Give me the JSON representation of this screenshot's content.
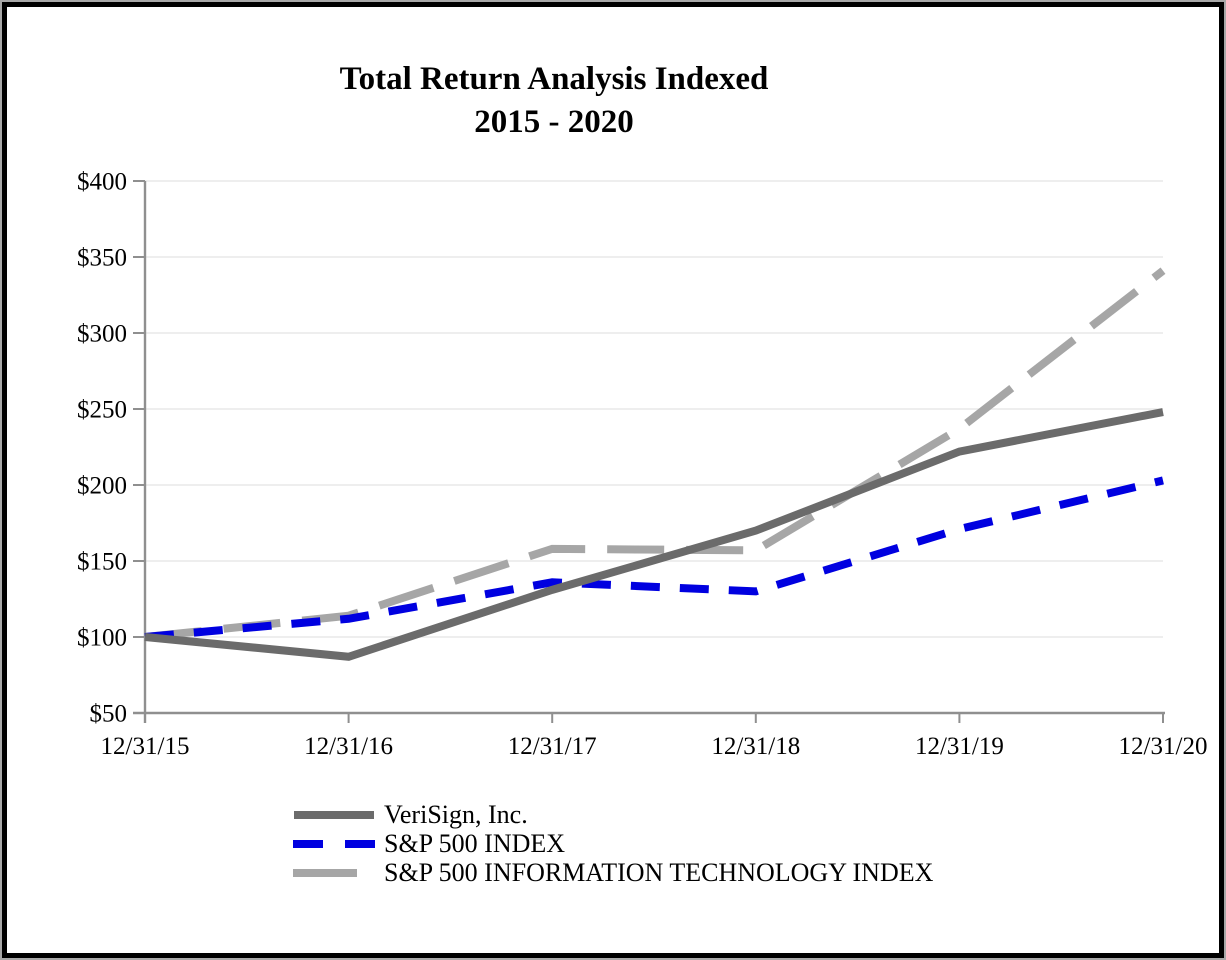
{
  "title": {
    "line1": "Total Return Analysis Indexed",
    "line2": "2015 - 2020"
  },
  "chart_data": {
    "type": "line",
    "title": "Total Return Analysis Indexed",
    "subtitle": "2015 - 2020",
    "x_categories": [
      "12/31/15",
      "12/31/16",
      "12/31/17",
      "12/31/18",
      "12/31/19",
      "12/31/20"
    ],
    "y_tick_labels": [
      "$50",
      "$100",
      "$150",
      "$200",
      "$250",
      "$300",
      "$350",
      "$400"
    ],
    "ylim": [
      50,
      400
    ],
    "y_step": 50,
    "grid": "horizontal-light",
    "legend_position": "bottom-left",
    "axis_color": "#8f8f8f",
    "gridline_color": "#e9e9e9",
    "series": [
      {
        "name": "VeriSign, Inc.",
        "color": "#6b6b6b",
        "line_style": "solid",
        "values": [
          100,
          87,
          131,
          170,
          222,
          248
        ]
      },
      {
        "name": "S&P 500 INDEX",
        "color": "#0000e0",
        "line_style": "dashed",
        "values": [
          100,
          112,
          136,
          130,
          171,
          203
        ]
      },
      {
        "name": "S&P 500 INFORMATION TECHNOLOGY INDEX",
        "color": "#a6a6a6",
        "line_style": "long-dash",
        "values": [
          100,
          114,
          158,
          157,
          237,
          341
        ]
      }
    ]
  }
}
